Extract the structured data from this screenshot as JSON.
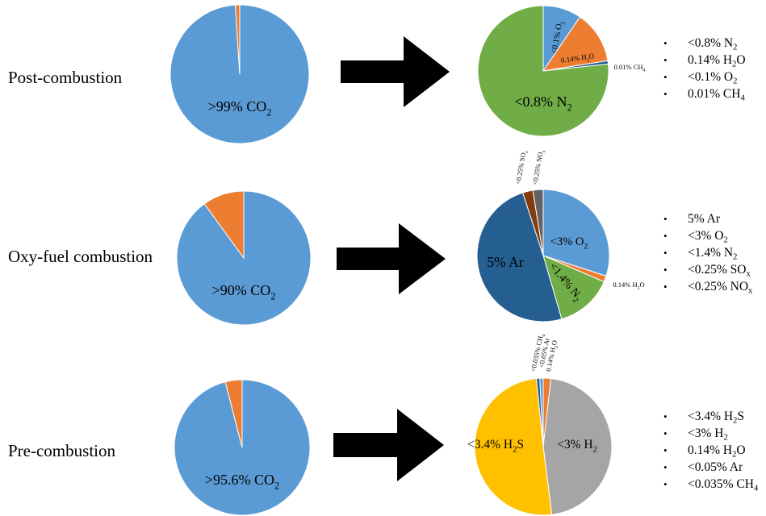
{
  "colors": {
    "blue": "#5B9BD5",
    "orange": "#ED7D31",
    "green": "#70AD47",
    "dark_blue": "#255E91",
    "gray": "#A5A5A5",
    "yellow": "#FFC000",
    "brown": "#843C0C",
    "dark_gray": "#636363",
    "arrow": "#000000"
  },
  "rows": [
    {
      "label": "Post-combustion",
      "main_pie": {
        "slices": [
          {
            "label": "",
            "value": 99,
            "color": "blue"
          },
          {
            "label": "",
            "value": 1,
            "color": "orange"
          }
        ],
        "center_text": ">99% CO",
        "center_sub": "2"
      },
      "impurity_pie": {
        "slices": [
          {
            "label": "<0.1% O",
            "sub": "2",
            "value": 9.5,
            "color": "blue"
          },
          {
            "label": "0.14% H",
            "sub": "2",
            "sub_tail": "O",
            "value": 13,
            "color": "orange"
          },
          {
            "label": "0.01% CH",
            "sub": "4",
            "value": 0.8,
            "color": "dark_blue"
          },
          {
            "label": "<0.8% N",
            "sub": "2",
            "value": 76.7,
            "color": "green"
          }
        ]
      },
      "bullets": [
        {
          "text": "<0.8% N",
          "sub": "2",
          "tail": ""
        },
        {
          "text": "0.14% H",
          "sub": "2",
          "tail": "O"
        },
        {
          "text": "<0.1% O",
          "sub": "2",
          "tail": ""
        },
        {
          "text": "0.01% CH",
          "sub": "4",
          "tail": ""
        }
      ]
    },
    {
      "label": "Oxy-fuel combustion",
      "main_pie": {
        "slices": [
          {
            "label": "",
            "value": 90,
            "color": "blue"
          },
          {
            "label": "",
            "value": 10,
            "color": "orange"
          }
        ],
        "center_text": ">90% CO",
        "center_sub": "2"
      },
      "impurity_pie": {
        "slices": [
          {
            "label": "<3% O",
            "sub": "2",
            "value": 30,
            "color": "blue"
          },
          {
            "label": "0.14% H",
            "sub": "2",
            "sub_tail": "O",
            "value": 1.5,
            "color": "orange"
          },
          {
            "label": "<1.4% N",
            "sub": "2",
            "value": 14,
            "color": "green"
          },
          {
            "label": "5% Ar",
            "sub": "",
            "value": 49.5,
            "color": "dark_blue"
          },
          {
            "label": "<0.25% SO",
            "sub": "x",
            "value": 2.5,
            "color": "brown"
          },
          {
            "label": "<0.25% NO",
            "sub": "x",
            "value": 2.5,
            "color": "dark_gray"
          }
        ]
      },
      "bullets": [
        {
          "text": "5% Ar",
          "sub": "",
          "tail": ""
        },
        {
          "text": "<3% O",
          "sub": "2",
          "tail": ""
        },
        {
          "text": "<1.4% N",
          "sub": "2",
          "tail": ""
        },
        {
          "text": "<0.25% SO",
          "sub": "x",
          "tail": ""
        },
        {
          "text": "<0.25% NO",
          "sub": "x",
          "tail": ""
        }
      ]
    },
    {
      "label": "Pre-combustion",
      "main_pie": {
        "slices": [
          {
            "label": "",
            "value": 96,
            "color": "blue"
          },
          {
            "label": "",
            "value": 4,
            "color": "orange"
          }
        ],
        "center_text": ">95.6% CO",
        "center_sub": "2"
      },
      "impurity_pie": {
        "slices": [
          {
            "label": "0.14% H",
            "sub": "2",
            "sub_tail": "O",
            "value": 1.8,
            "color": "orange"
          },
          {
            "label": "<3% H",
            "sub": "2",
            "value": 46.2,
            "color": "gray"
          },
          {
            "label": "<3.4% H",
            "sub": "2",
            "sub_tail": "S",
            "value": 50.4,
            "color": "yellow"
          },
          {
            "label": "<0.035% CH",
            "sub": "4",
            "value": 0.8,
            "color": "dark_blue"
          },
          {
            "label": "<0.05% Ar",
            "sub": "",
            "value": 0.8,
            "color": "blue"
          }
        ]
      },
      "bullets": [
        {
          "text": "<3.4% H",
          "sub": "2",
          "tail": "S"
        },
        {
          "text": "<3% H",
          "sub": "2",
          "tail": ""
        },
        {
          "text": "0.14% H",
          "sub": "2",
          "tail": "O"
        },
        {
          "text": "<0.05% Ar",
          "sub": "",
          "tail": ""
        },
        {
          "text": "<0.035% CH",
          "sub": "4",
          "tail": ""
        }
      ]
    }
  ]
}
